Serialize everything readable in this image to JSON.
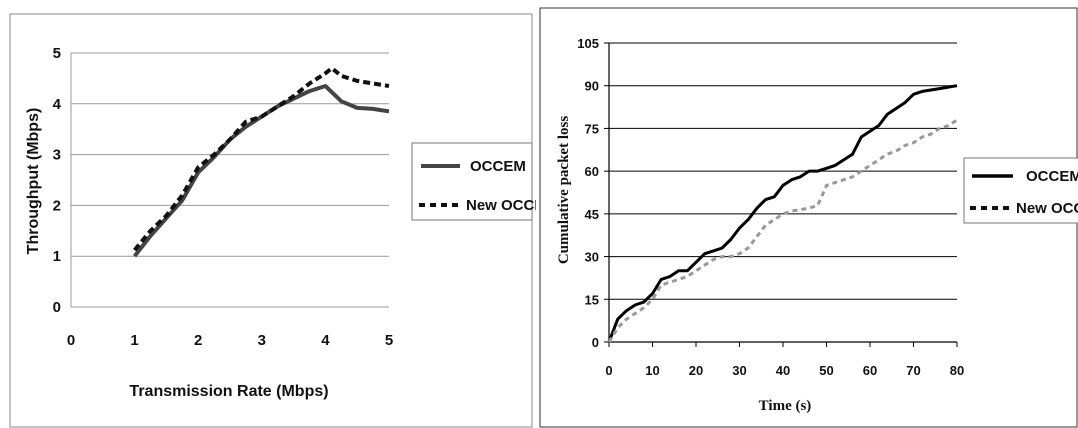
{
  "chart_data": [
    {
      "type": "line",
      "title": "",
      "xlabel": "Transmission Rate (Mbps)",
      "ylabel": "Throughput (Mbps)",
      "xlim": [
        0,
        5
      ],
      "ylim": [
        0,
        5
      ],
      "xticks": [
        "0",
        "1",
        "2",
        "3",
        "4",
        "5"
      ],
      "yticks": [
        "0",
        "1",
        "2",
        "3",
        "4",
        "5"
      ],
      "grid": "horizontal",
      "legend_position": "right",
      "series": [
        {
          "name": "OCCEM",
          "style": "solid",
          "color": "#444444",
          "x": [
            1.0,
            1.25,
            1.5,
            1.75,
            2.0,
            2.25,
            2.5,
            2.75,
            3.0,
            3.25,
            3.5,
            3.75,
            4.0,
            4.25,
            4.5,
            4.75,
            5.0
          ],
          "y": [
            1.0,
            1.4,
            1.75,
            2.1,
            2.65,
            2.95,
            3.3,
            3.55,
            3.75,
            3.95,
            4.1,
            4.25,
            4.35,
            4.05,
            3.92,
            3.9,
            3.85
          ]
        },
        {
          "name": "New OCCEM",
          "style": "dashed",
          "color": "#111111",
          "x": [
            1.0,
            1.25,
            1.5,
            1.75,
            2.0,
            2.25,
            2.5,
            2.75,
            3.0,
            3.25,
            3.5,
            3.75,
            4.0,
            4.1,
            4.25,
            4.5,
            4.75,
            5.0
          ],
          "y": [
            1.12,
            1.5,
            1.8,
            2.2,
            2.75,
            3.0,
            3.3,
            3.65,
            3.75,
            3.95,
            4.15,
            4.4,
            4.6,
            4.7,
            4.55,
            4.45,
            4.4,
            4.35
          ]
        }
      ]
    },
    {
      "type": "line",
      "title": "",
      "xlabel": "Time (s)",
      "ylabel": "Cumulative packet loss",
      "xlim": [
        0,
        80
      ],
      "ylim": [
        0,
        105
      ],
      "xticks": [
        "0",
        "10",
        "20",
        "30",
        "40",
        "50",
        "60",
        "70",
        "80"
      ],
      "yticks": [
        "0",
        "15",
        "30",
        "45",
        "60",
        "75",
        "90",
        "105"
      ],
      "grid": "horizontal",
      "legend_position": "right",
      "series": [
        {
          "name": "OCCEM",
          "style": "solid",
          "color": "#000000",
          "x": [
            0,
            2,
            4,
            6,
            8,
            10,
            12,
            14,
            16,
            18,
            20,
            22,
            24,
            26,
            28,
            30,
            32,
            34,
            36,
            38,
            40,
            42,
            44,
            46,
            48,
            50,
            52,
            54,
            56,
            58,
            60,
            62,
            64,
            66,
            68,
            70,
            72,
            74,
            76,
            78,
            80
          ],
          "y": [
            0,
            8,
            11,
            13,
            14,
            17,
            22,
            23,
            25,
            25,
            28,
            31,
            32,
            33,
            36,
            40,
            43,
            47,
            50,
            51,
            55,
            57,
            58,
            60,
            60,
            61,
            62,
            64,
            66,
            72,
            74,
            76,
            80,
            82,
            84,
            87,
            88,
            88.5,
            89,
            89.5,
            90
          ]
        },
        {
          "name": "New OCCEM",
          "style": "dashed",
          "color": "#999999",
          "x": [
            0,
            2,
            4,
            6,
            8,
            10,
            12,
            14,
            16,
            18,
            20,
            22,
            24,
            26,
            28,
            30,
            32,
            34,
            36,
            38,
            40,
            42,
            44,
            46,
            48,
            50,
            52,
            54,
            56,
            58,
            60,
            62,
            64,
            66,
            68,
            70,
            72,
            74,
            76,
            78,
            80
          ],
          "y": [
            0,
            5,
            8,
            10,
            12,
            15,
            20,
            21,
            22,
            23,
            25,
            27,
            29,
            30,
            30,
            31,
            33,
            37,
            41,
            43,
            45,
            46,
            46.5,
            47,
            48,
            55,
            56,
            57,
            58,
            60,
            62,
            64,
            66,
            67,
            69,
            70,
            72,
            73,
            75,
            76,
            78
          ]
        }
      ]
    }
  ]
}
